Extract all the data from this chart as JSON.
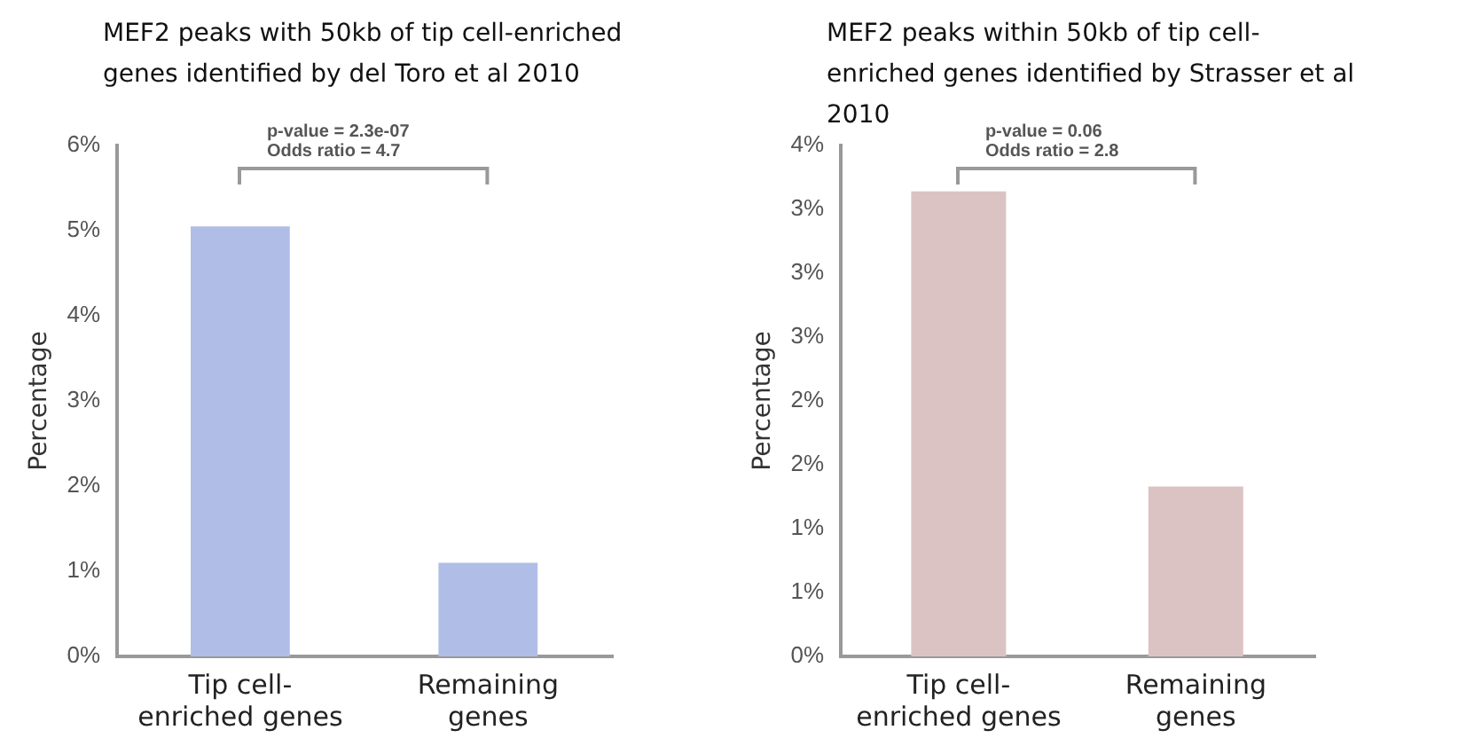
{
  "chart_data": [
    {
      "type": "bar",
      "title": "MEF2 peaks with 50kb of tip cell-enriched genes identified by del Toro et al 2010",
      "ylabel": "Percentage",
      "categories": [
        "Tip cell-enriched genes",
        "Remaining genes"
      ],
      "values": [
        5.05,
        1.1
      ],
      "color": "#b0bde6",
      "ylim": [
        0,
        6
      ],
      "yticks": [
        {
          "value": 0,
          "label": "0%"
        },
        {
          "value": 1,
          "label": "1%"
        },
        {
          "value": 2,
          "label": "2%"
        },
        {
          "value": 3,
          "label": "3%"
        },
        {
          "value": 4,
          "label": "4%"
        },
        {
          "value": 5,
          "label": "5%"
        },
        {
          "value": 6,
          "label": "6%"
        }
      ],
      "grid": false,
      "legend": false,
      "annotations": [
        "p-value = 2.3e-07",
        "Odds ratio = 4.7"
      ]
    },
    {
      "type": "bar",
      "title": "MEF2 peaks within 50kb of tip cell-enriched genes identified by Strasser et al 2010",
      "ylabel": "Percentage",
      "categories": [
        "Tip cell-enriched genes",
        "Remaining genes"
      ],
      "values": [
        3.64,
        1.33
      ],
      "color": "#dcc3c3",
      "ylim": [
        0,
        4
      ],
      "yticks": [
        {
          "value": 0,
          "label": "0%"
        },
        {
          "value": 0.5,
          "label": "1%"
        },
        {
          "value": 1,
          "label": "1%"
        },
        {
          "value": 1.5,
          "label": "2%"
        },
        {
          "value": 2,
          "label": "2%"
        },
        {
          "value": 2.5,
          "label": "3%"
        },
        {
          "value": 3,
          "label": "3%"
        },
        {
          "value": 3.5,
          "label": "3%"
        },
        {
          "value": 4,
          "label": "4%"
        }
      ],
      "grid": false,
      "legend": false,
      "annotations": [
        "p-value = 0.06",
        "Odds ratio = 2.8"
      ]
    }
  ]
}
